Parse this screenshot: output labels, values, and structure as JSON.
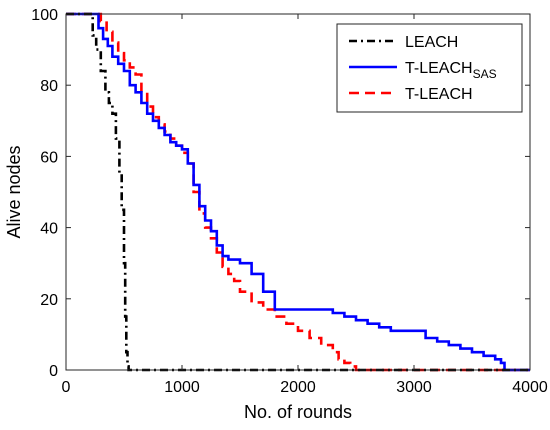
{
  "chart_data": {
    "type": "line",
    "title": "",
    "xlabel": "No. of rounds",
    "ylabel": "Alive nodes",
    "xlim": [
      0,
      4000
    ],
    "ylim": [
      0,
      100
    ],
    "xticks": [
      0,
      1000,
      2000,
      3000,
      4000
    ],
    "yticks": [
      0,
      20,
      40,
      60,
      80,
      100
    ],
    "grid": false,
    "legend_position": "top-right",
    "series": [
      {
        "name": "LEACH",
        "subscript": "",
        "color": "#000000",
        "dash": "dash-dot",
        "x": [
          0,
          200,
          230,
          260,
          300,
          340,
          370,
          400,
          430,
          460,
          480,
          500,
          510,
          520,
          530,
          540,
          560,
          600,
          800,
          1200,
          2000,
          3000,
          4000
        ],
        "y": [
          100,
          100,
          94,
          90,
          84,
          78,
          75,
          72,
          65,
          55,
          45,
          30,
          15,
          5,
          1,
          0,
          0,
          0,
          0,
          0,
          0,
          0,
          0
        ]
      },
      {
        "name": "T-LEACH",
        "subscript": "SAS",
        "color": "#0000ff",
        "dash": "solid",
        "x": [
          0,
          240,
          280,
          320,
          360,
          400,
          450,
          500,
          550,
          600,
          650,
          700,
          750,
          800,
          850,
          900,
          950,
          1000,
          1050,
          1100,
          1150,
          1200,
          1250,
          1300,
          1350,
          1400,
          1500,
          1600,
          1700,
          1800,
          2000,
          2200,
          2300,
          2400,
          2500,
          2600,
          2700,
          2800,
          3000,
          3100,
          3200,
          3300,
          3400,
          3500,
          3600,
          3700,
          3750,
          3780,
          3850,
          4000
        ],
        "y": [
          100,
          100,
          96,
          93,
          91,
          88,
          86,
          84,
          80,
          78,
          75,
          72,
          70,
          68,
          66,
          64,
          63,
          62,
          58,
          52,
          46,
          42,
          39,
          35,
          32,
          31,
          30,
          27,
          22,
          17,
          17,
          17,
          16,
          15,
          14,
          13,
          12,
          11,
          11,
          9,
          8,
          7,
          6,
          5,
          4,
          3,
          2,
          0,
          0,
          0
        ]
      },
      {
        "name": "T-LEACH",
        "subscript": "",
        "color": "#ff0000",
        "dash": "dashed",
        "x": [
          0,
          250,
          300,
          350,
          400,
          450,
          500,
          550,
          600,
          650,
          700,
          750,
          800,
          850,
          900,
          950,
          1000,
          1050,
          1100,
          1150,
          1200,
          1250,
          1300,
          1350,
          1400,
          1450,
          1500,
          1600,
          1700,
          1800,
          1900,
          2000,
          2100,
          2200,
          2300,
          2350,
          2400,
          2450,
          2500,
          2600,
          3000,
          4000
        ],
        "y": [
          100,
          100,
          98,
          95,
          92,
          89,
          87,
          85,
          83,
          78,
          74,
          71,
          69,
          67,
          65,
          63,
          61,
          58,
          50,
          44,
          40,
          37,
          33,
          29,
          27,
          25,
          22,
          19,
          17,
          15,
          13,
          11,
          9,
          7,
          5,
          3,
          2,
          1,
          0,
          0,
          0,
          0
        ]
      }
    ]
  }
}
